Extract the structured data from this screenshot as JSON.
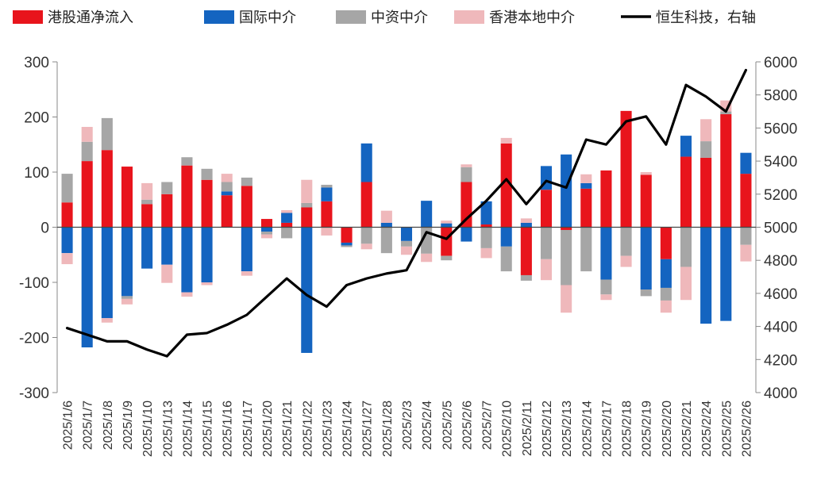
{
  "chart_data": {
    "type": "bar",
    "stacked": true,
    "categories": [
      "2025/1/6",
      "2025/1/7",
      "2025/1/8",
      "2025/1/9",
      "2025/1/10",
      "2025/1/13",
      "2025/1/14",
      "2025/1/15",
      "2025/1/16",
      "2025/1/17",
      "2025/1/20",
      "2025/1/21",
      "2025/1/22",
      "2025/1/23",
      "2025/1/24",
      "2025/1/27",
      "2025/1/28",
      "2025/2/3",
      "2025/2/4",
      "2025/2/5",
      "2025/2/6",
      "2025/2/7",
      "2025/2/10",
      "2025/2/11",
      "2025/2/12",
      "2025/2/13",
      "2025/2/14",
      "2025/2/17",
      "2025/2/18",
      "2025/2/19",
      "2025/2/20",
      "2025/2/21",
      "2025/2/24",
      "2025/2/25",
      "2025/2/26"
    ],
    "series": [
      {
        "name": "港股通净流入",
        "color": "#e8141c",
        "axis": "left",
        "values": [
          45,
          120,
          140,
          110,
          42,
          60,
          112,
          86,
          58,
          75,
          15,
          8,
          36,
          47,
          -28,
          82,
          0,
          0,
          0,
          -52,
          82,
          5,
          152,
          -87,
          68,
          -5,
          70,
          103,
          211,
          95,
          -58,
          128,
          126,
          205,
          97
        ]
      },
      {
        "name": "国际中介",
        "color": "#1464c0",
        "axis": "left",
        "values": [
          -47,
          -218,
          -165,
          -125,
          -75,
          -68,
          -118,
          -100,
          7,
          -80,
          -8,
          18,
          -228,
          25,
          -5,
          70,
          8,
          -25,
          48,
          7,
          -26,
          42,
          -35,
          8,
          43,
          132,
          10,
          -95,
          0,
          -113,
          -52,
          38,
          -175,
          -170,
          38
        ]
      },
      {
        "name": "中资中介",
        "color": "#a6a6a6",
        "axis": "left",
        "values": [
          52,
          35,
          58,
          -5,
          8,
          22,
          15,
          20,
          17,
          15,
          -5,
          -20,
          8,
          5,
          -3,
          -30,
          -47,
          -10,
          -48,
          -8,
          27,
          -38,
          -45,
          -10,
          -58,
          -100,
          -80,
          -27,
          -52,
          -12,
          -23,
          -72,
          30,
          5,
          -32
        ]
      },
      {
        "name": "香港本地中介",
        "color": "#efb8bb",
        "axis": "left",
        "values": [
          -20,
          27,
          -8,
          -10,
          30,
          -33,
          -8,
          -5,
          15,
          -8,
          -7,
          5,
          42,
          -15,
          0,
          -10,
          22,
          -15,
          -15,
          5,
          5,
          -18,
          10,
          8,
          -38,
          -50,
          16,
          -10,
          -20,
          5,
          -22,
          -60,
          40,
          20,
          -30
        ]
      },
      {
        "name": "恒生科技，右轴",
        "color": "#000000",
        "type": "line",
        "axis": "right",
        "values": [
          4390,
          4350,
          4310,
          4310,
          4260,
          4220,
          4350,
          4360,
          4410,
          4470,
          4580,
          4690,
          4590,
          4520,
          4650,
          4690,
          4720,
          4740,
          4970,
          4930,
          5050,
          5160,
          5290,
          5140,
          5280,
          5240,
          5530,
          5500,
          5640,
          5670,
          5500,
          5860,
          5790,
          5700,
          5950
        ]
      }
    ],
    "ylim": [
      -300,
      300
    ],
    "y_ticks": [
      "-300",
      "-200",
      "-100",
      "0",
      "100",
      "200",
      "300"
    ],
    "y2lim": [
      4000,
      6000
    ],
    "y2_ticks": [
      "4000",
      "4200",
      "4400",
      "4600",
      "4800",
      "5000",
      "5200",
      "5400",
      "5600",
      "5800",
      "6000"
    ],
    "legend_position": "top",
    "grid": false
  }
}
